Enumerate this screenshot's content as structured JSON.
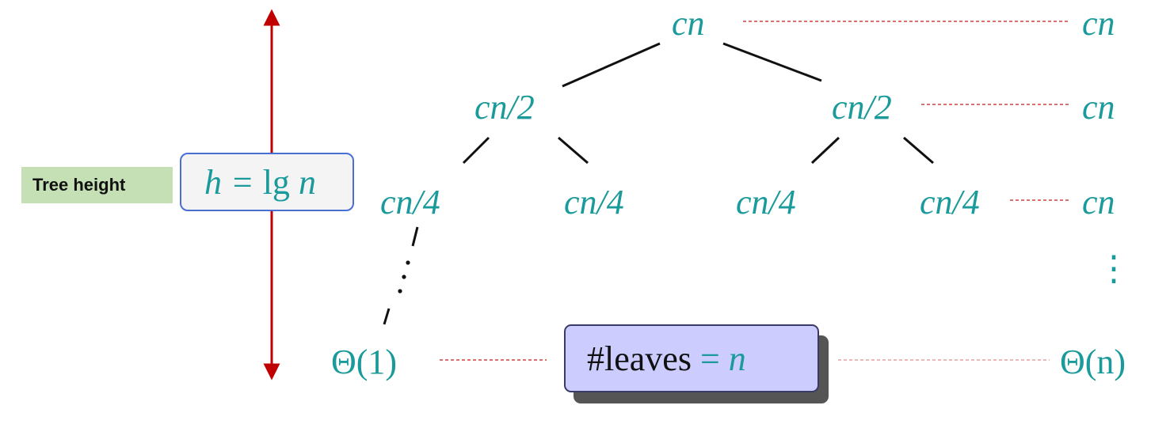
{
  "tree": {
    "root": "cn",
    "level1": [
      "cn/2",
      "cn/2"
    ],
    "level2": [
      "cn/4",
      "cn/4",
      "cn/4",
      "cn/4"
    ],
    "leaf": "Θ(1)"
  },
  "costs": {
    "level0": "cn",
    "level1": "cn",
    "level2": "cn",
    "leaves": "Θ(n)",
    "vdots": "⋮"
  },
  "height": {
    "label": "Tree height",
    "formula": "h = lg n"
  },
  "leaves_count": {
    "text": "#leaves = n"
  },
  "colors": {
    "teal": "#1a9a9a",
    "arrow": "#c00000",
    "dash": "#d04040",
    "label_bg": "#c5e0b4",
    "leaves_bg": "#ccccff"
  }
}
